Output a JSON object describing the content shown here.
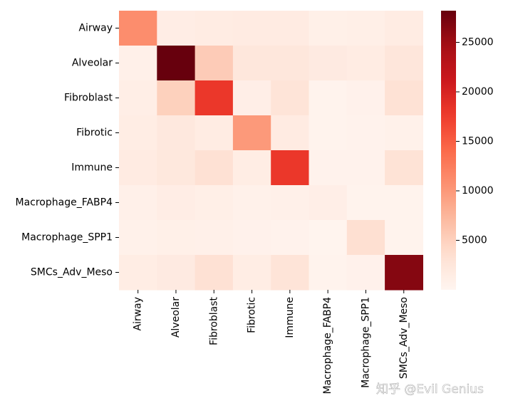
{
  "chart_data": {
    "type": "heatmap",
    "title": "",
    "xlabel": "",
    "ylabel": "",
    "rows": [
      "Airway",
      "Alveolar",
      "Fibroblast",
      "Fibrotic",
      "Immune",
      "Macrophage_FABP4",
      "Macrophage_SPP1",
      "SMCs_Adv_Meso"
    ],
    "cols": [
      "Airway",
      "Alveolar",
      "Fibroblast",
      "Fibrotic",
      "Immune",
      "Macrophage_FABP4",
      "Macrophage_SPP1",
      "SMCs_Adv_Meso"
    ],
    "values": [
      [
        11000,
        1300,
        1500,
        1700,
        1700,
        900,
        1000,
        1500
      ],
      [
        800,
        28200,
        5500,
        2300,
        2300,
        1800,
        1500,
        2500
      ],
      [
        1200,
        5000,
        18000,
        1100,
        2800,
        400,
        600,
        3200
      ],
      [
        1400,
        2100,
        1500,
        10000,
        1600,
        400,
        500,
        700
      ],
      [
        1600,
        2200,
        3300,
        1400,
        18000,
        500,
        500,
        3000
      ],
      [
        800,
        1300,
        1000,
        700,
        800,
        1100,
        300,
        300
      ],
      [
        700,
        900,
        800,
        600,
        500,
        200,
        3500,
        300
      ],
      [
        1400,
        1800,
        3300,
        1400,
        2800,
        400,
        600,
        26500
      ]
    ],
    "colorbar": {
      "min": 0,
      "max": 28200,
      "ticks": [
        5000,
        10000,
        15000,
        20000,
        25000
      ],
      "colormap": "Reds"
    }
  },
  "watermark": "知乎 @Evil Genius"
}
